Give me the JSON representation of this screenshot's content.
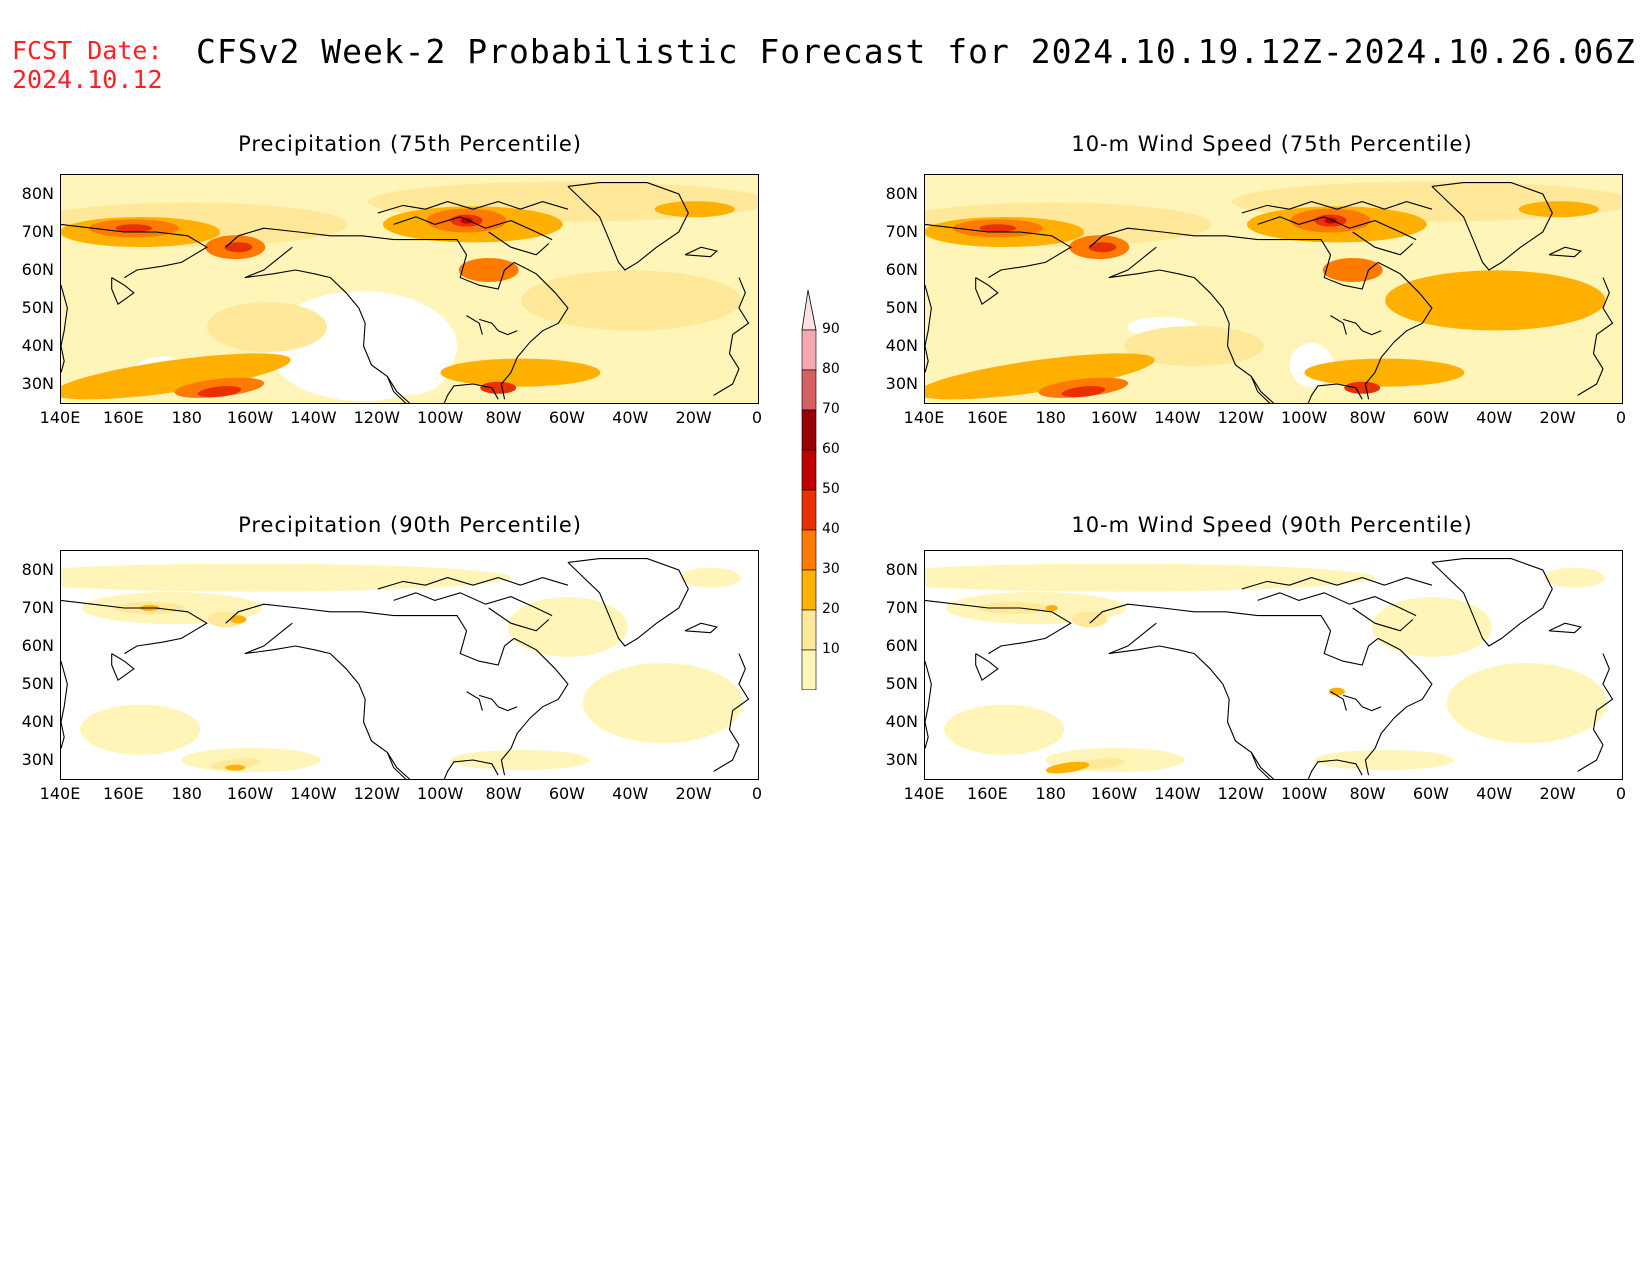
{
  "header": {
    "fcst_label": "FCST Date:",
    "fcst_date": "2024.10.12",
    "title": "CFSv2 Week-2 Probabilistic Forecast for 2024.10.19.12Z-2024.10.26.06Z"
  },
  "axes": {
    "lat_labels": [
      "80N",
      "70N",
      "60N",
      "50N",
      "40N",
      "30N"
    ],
    "lon_labels": [
      "140E",
      "160E",
      "180",
      "160W",
      "140W",
      "120W",
      "100W",
      "80W",
      "60W",
      "40W",
      "20W",
      "0"
    ]
  },
  "panels": [
    {
      "id": "precip75",
      "title": "Precipitation (75th Percentile)",
      "intensity": "high"
    },
    {
      "id": "wind75",
      "title": "10-m Wind Speed (75th Percentile)",
      "intensity": "high"
    },
    {
      "id": "precip90",
      "title": "Precipitation (90th Percentile)",
      "intensity": "low"
    },
    {
      "id": "wind90",
      "title": "10-m Wind Speed (90th Percentile)",
      "intensity": "low"
    }
  ],
  "colorbar": {
    "levels": [
      "10",
      "20",
      "30",
      "40",
      "50",
      "60",
      "70",
      "80",
      "90"
    ],
    "colors": [
      "#fff5b8",
      "#ffe89a",
      "#ffb000",
      "#ff7a00",
      "#e83000",
      "#c00000",
      "#9a0000",
      "#d86060",
      "#f4a8b0"
    ]
  }
}
